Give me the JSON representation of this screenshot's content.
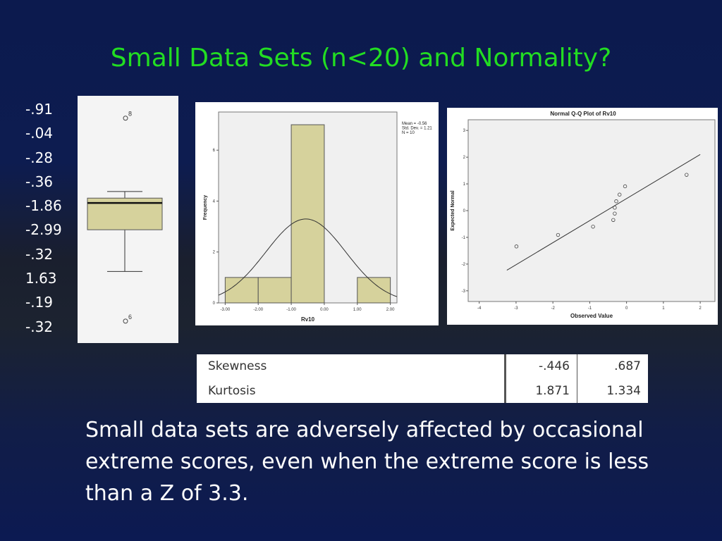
{
  "slide": {
    "title": "Small Data Sets (n<20) and Normality?",
    "values": [
      "-.91",
      "-.04",
      "-.28",
      "-.36",
      "-1.86",
      "-2.99",
      "-.32",
      "1.63",
      "-.19",
      "-.32"
    ],
    "caption": "Small data sets are adversely affected by occasional extreme scores, even when the extreme score is less than a Z of 3.3."
  },
  "boxplot": {
    "outlier_labels": [
      "8",
      "6"
    ]
  },
  "histogram": {
    "stats": [
      "Mean = -0.56",
      "Std. Dev. = 1.21",
      "N = 10"
    ]
  },
  "stats_table": {
    "rows": [
      {
        "label": "Skewness",
        "statistic": "-.446",
        "std_error": ".687"
      },
      {
        "label": "Kurtosis",
        "statistic": "1.871",
        "std_error": "1.334"
      }
    ]
  },
  "colors": {
    "title": "#22dd22",
    "bar_fill": "#d6d29c",
    "bar_stroke": "#555555"
  },
  "chart_data": [
    {
      "type": "boxplot",
      "values": [
        -0.91,
        -0.04,
        -0.28,
        -0.36,
        -1.86,
        -2.99,
        -0.32,
        1.63,
        -0.19,
        -0.32
      ],
      "whisker_low": -1.86,
      "q1": -0.91,
      "median": -0.3,
      "q3": -0.19,
      "whisker_high": -0.04,
      "outliers": [
        {
          "label": "8",
          "value": 1.63
        },
        {
          "label": "6",
          "value": -2.99
        }
      ],
      "ylim": [
        -3.2,
        1.85
      ]
    },
    {
      "type": "bar",
      "title": "",
      "xlabel": "Rv10",
      "ylabel": "Frequency",
      "bins": [
        {
          "from": -3.0,
          "to": -2.0,
          "count": 1
        },
        {
          "from": -2.0,
          "to": -1.0,
          "count": 1
        },
        {
          "from": -1.0,
          "to": 0.0,
          "count": 7
        },
        {
          "from": 0.0,
          "to": 1.0,
          "count": 0
        },
        {
          "from": 1.0,
          "to": 2.0,
          "count": 1
        }
      ],
      "normal_curve": {
        "mean": -0.56,
        "sd": 1.21,
        "n": 10,
        "bin_width": 1.0
      },
      "xlim": [
        -3.2,
        2.2
      ],
      "ylim": [
        0,
        7.5
      ],
      "xticks": [
        "-3.00",
        "-2.00",
        "-1.00",
        "0.00",
        "1.00",
        "2.00"
      ],
      "yticks": [
        "0",
        "2",
        "4",
        "6"
      ]
    },
    {
      "type": "scatter",
      "title": "Normal Q-Q Plot of Rv10",
      "xlabel": "Observed Value",
      "ylabel": "Expected Normal",
      "x": [
        -2.99,
        -1.86,
        -0.91,
        -0.36,
        -0.32,
        -0.32,
        -0.28,
        -0.19,
        -0.04,
        1.63
      ],
      "y": [
        -1.34,
        -0.91,
        -0.6,
        -0.35,
        -0.11,
        0.11,
        0.35,
        0.6,
        0.91,
        1.34
      ],
      "reference_line": {
        "x": [
          -3.25,
          2.0
        ],
        "y": [
          -2.23,
          2.1
        ]
      },
      "xlim": [
        -4.3,
        2.4
      ],
      "ylim": [
        -3.4,
        3.4
      ],
      "xticks": [
        "-4",
        "-3",
        "-2",
        "-1",
        "0",
        "1",
        "2"
      ],
      "yticks": [
        "-3",
        "-2",
        "-1",
        "0",
        "1",
        "2",
        "3"
      ]
    }
  ]
}
